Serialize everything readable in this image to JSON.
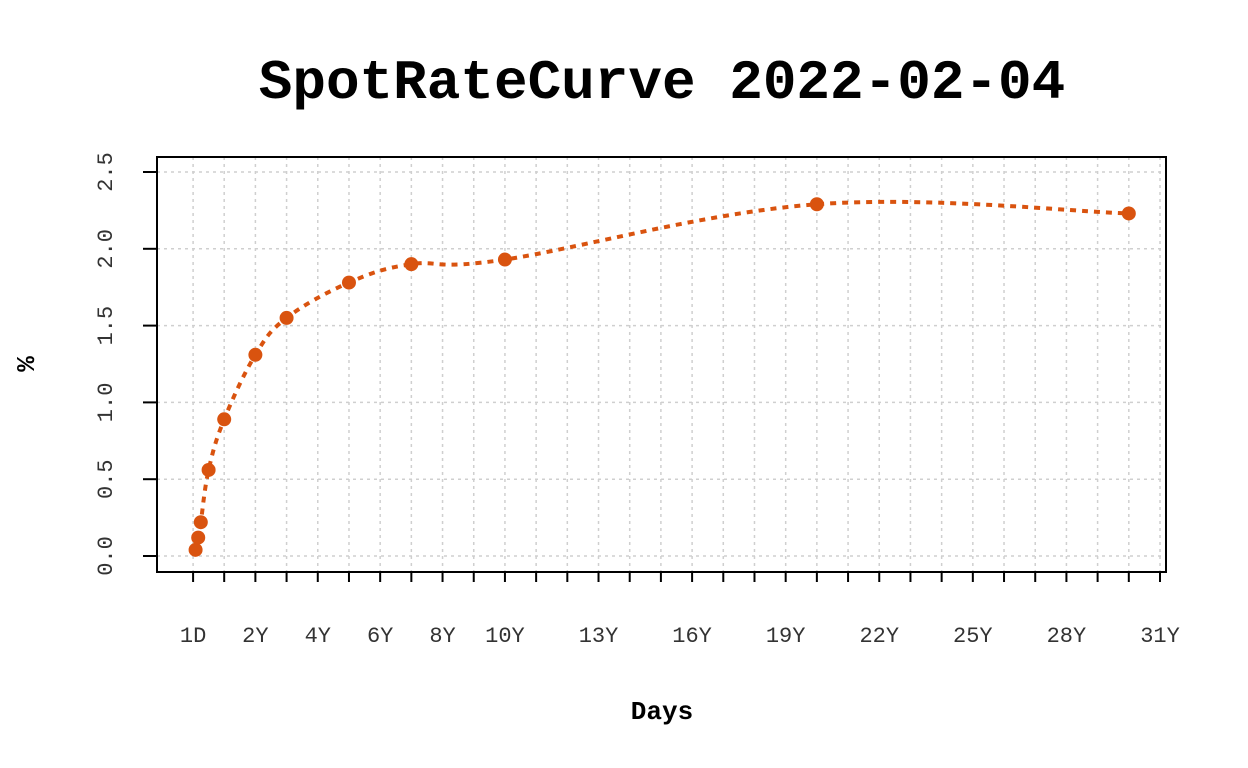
{
  "chart_data": {
    "type": "line",
    "title": "SpotRateCurve 2022-02-04",
    "xlabel": "Days",
    "ylabel": "%",
    "x_tick_labels": [
      "1D",
      "2Y",
      "4Y",
      "6Y",
      "8Y",
      "10Y",
      "13Y",
      "16Y",
      "19Y",
      "22Y",
      "25Y",
      "28Y",
      "31Y"
    ],
    "x_tick_years": [
      0.003,
      2,
      4,
      6,
      8,
      10,
      13,
      16,
      19,
      22,
      25,
      28,
      31
    ],
    "y_ticks": [
      0.0,
      0.5,
      1.0,
      1.5,
      2.0,
      2.5
    ],
    "y_tick_labels": [
      "0.0",
      "0.5",
      "1.0",
      "1.5",
      "2.0",
      "2.5"
    ],
    "xlim_years": [
      0,
      31
    ],
    "ylim": [
      -0.1,
      2.6
    ],
    "grid": true,
    "series": [
      {
        "color": "#d9530f",
        "x_years": [
          0.083,
          0.167,
          0.25,
          0.5,
          1,
          2,
          3,
          5,
          7,
          10,
          20,
          30
        ],
        "values": [
          0.04,
          0.12,
          0.22,
          0.56,
          0.89,
          1.31,
          1.55,
          1.78,
          1.9,
          1.93,
          2.29,
          2.23
        ]
      }
    ]
  }
}
